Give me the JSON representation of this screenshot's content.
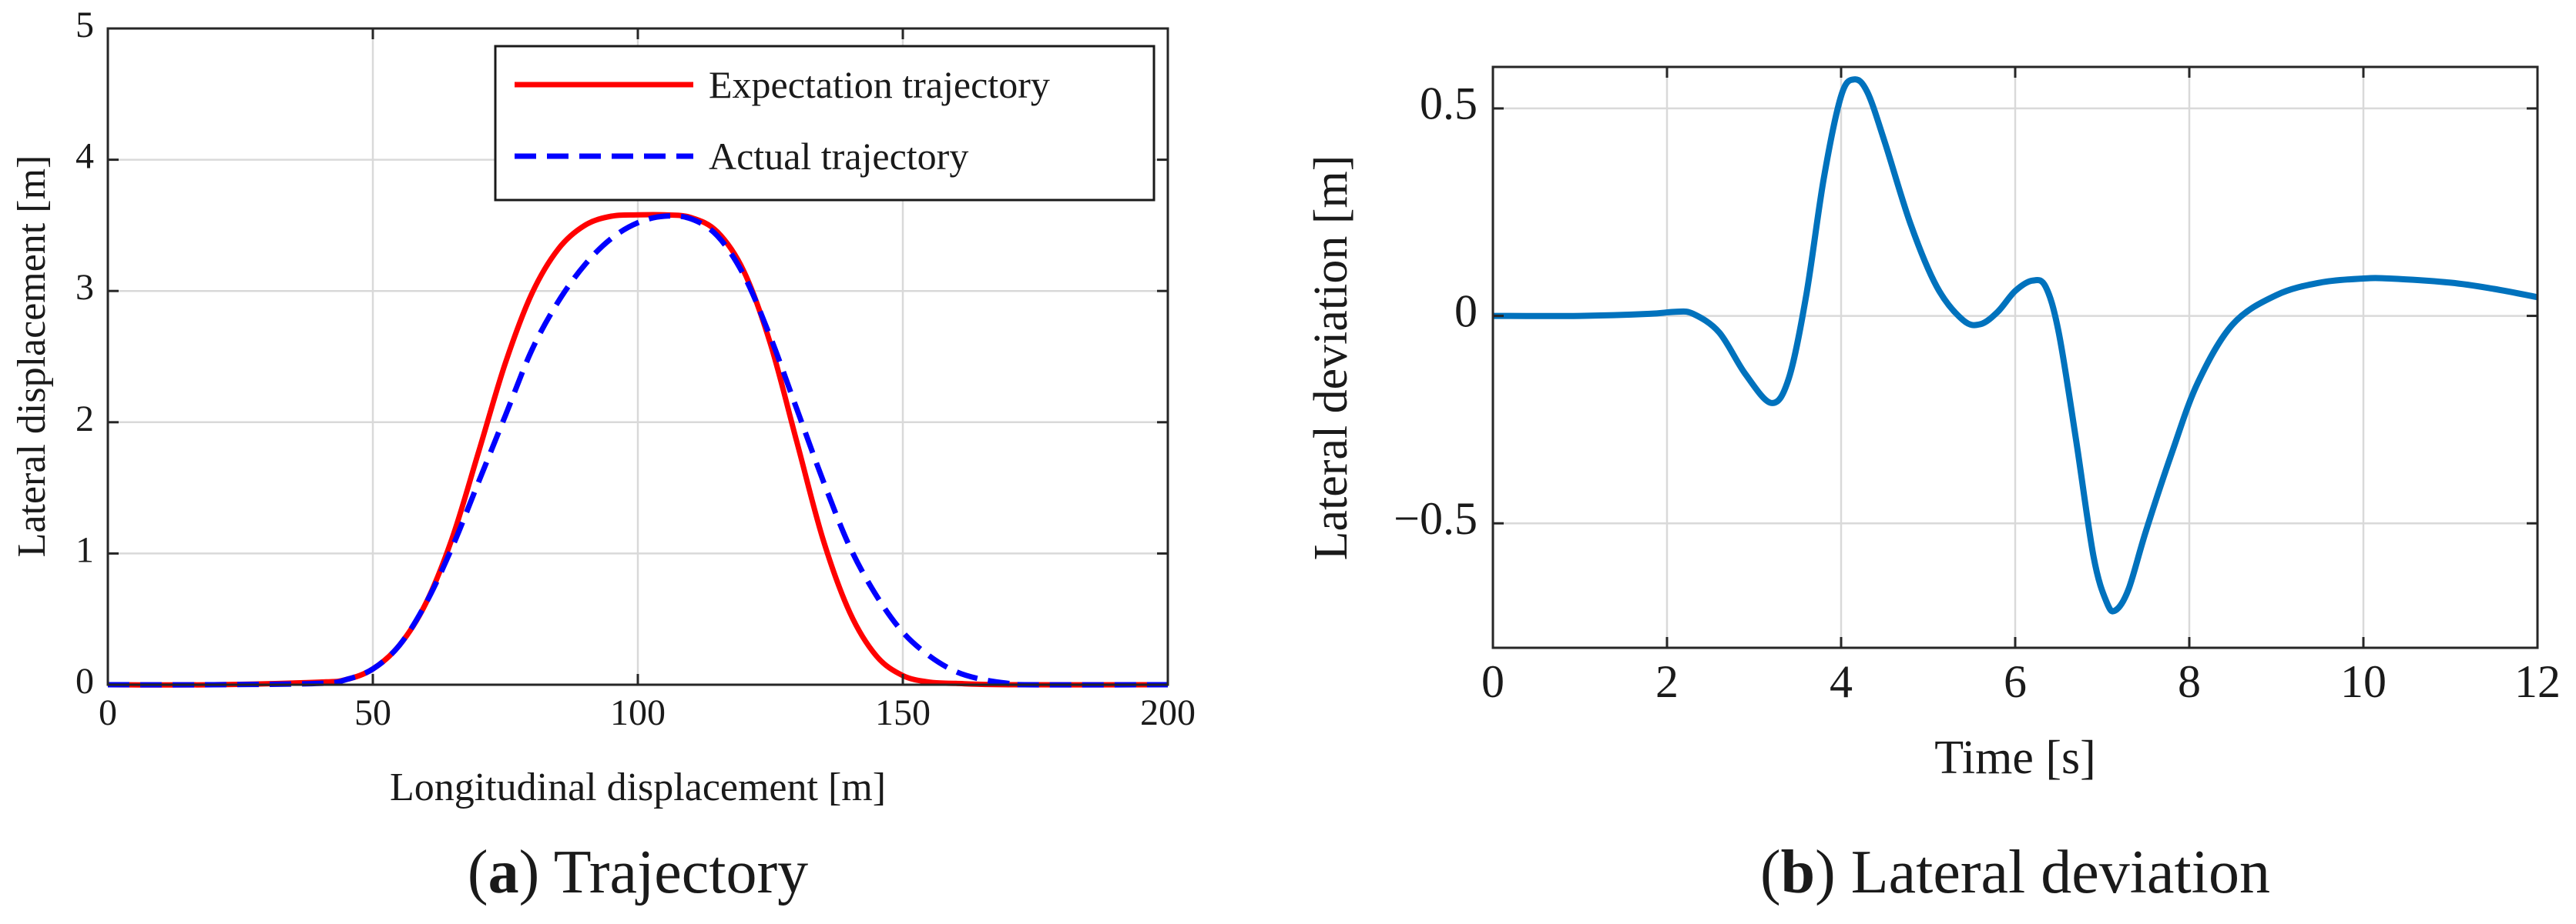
{
  "chart_data": [
    {
      "id": "a",
      "type": "line",
      "title": "",
      "xlabel": "Longitudinal displacement [m]",
      "ylabel": "Lateral displacement [m]",
      "xlim": [
        0,
        200
      ],
      "ylim": [
        0,
        5
      ],
      "xticks": [
        0,
        50,
        100,
        150,
        200
      ],
      "yticks": [
        0,
        1,
        2,
        3,
        4,
        5
      ],
      "grid": true,
      "legend_position": "top-right",
      "caption": {
        "label": "a",
        "text": "Trajectory"
      },
      "series": [
        {
          "name": "Expectation trajectory",
          "color": "#ff0000",
          "style": "solid",
          "x": [
            0,
            20,
            40,
            45,
            50,
            55,
            60,
            65,
            70,
            75,
            80,
            85,
            90,
            95,
            100,
            105,
            110,
            115,
            120,
            125,
            130,
            135,
            140,
            145,
            150,
            155,
            160,
            170,
            200
          ],
          "y": [
            0,
            0,
            0.02,
            0.04,
            0.12,
            0.3,
            0.62,
            1.12,
            1.78,
            2.45,
            2.98,
            3.32,
            3.5,
            3.57,
            3.58,
            3.58,
            3.56,
            3.45,
            3.15,
            2.6,
            1.85,
            1.1,
            0.55,
            0.22,
            0.07,
            0.02,
            0.01,
            0,
            0
          ]
        },
        {
          "name": "Actual trajectory",
          "color": "#0000ff",
          "style": "dashed",
          "x": [
            0,
            20,
            40,
            45,
            50,
            55,
            60,
            65,
            70,
            75,
            80,
            85,
            90,
            95,
            100,
            105,
            110,
            115,
            120,
            125,
            130,
            135,
            140,
            145,
            150,
            155,
            160,
            165,
            170,
            173,
            200
          ],
          "y": [
            0,
            0,
            0.01,
            0.04,
            0.12,
            0.3,
            0.62,
            1.05,
            1.55,
            2.05,
            2.55,
            2.92,
            3.2,
            3.4,
            3.52,
            3.57,
            3.55,
            3.42,
            3.12,
            2.65,
            2.1,
            1.55,
            1.05,
            0.68,
            0.4,
            0.22,
            0.1,
            0.04,
            0.01,
            0,
            0
          ]
        }
      ]
    },
    {
      "id": "b",
      "type": "line",
      "title": "",
      "xlabel": "Time [s]",
      "ylabel": "Lateral deviation [m]",
      "xlim": [
        0,
        12
      ],
      "ylim": [
        -0.8,
        0.6
      ],
      "xticks": [
        0,
        2,
        4,
        6,
        8,
        10,
        12
      ],
      "yticks": [
        0.5,
        0,
        -0.5
      ],
      "ytick_labels": [
        "0.5",
        "0",
        "−0.5"
      ],
      "grid": true,
      "caption": {
        "label": "b",
        "text": "Lateral deviation"
      },
      "series": [
        {
          "name": "Lateral deviation",
          "color": "#0072bd",
          "style": "solid",
          "x": [
            0,
            1,
            1.8,
            2.1,
            2.3,
            2.6,
            2.9,
            3.2,
            3.4,
            3.6,
            3.8,
            4.0,
            4.15,
            4.3,
            4.5,
            4.8,
            5.1,
            5.4,
            5.6,
            5.8,
            6.0,
            6.2,
            6.35,
            6.5,
            6.7,
            6.9,
            7.05,
            7.15,
            7.3,
            7.5,
            7.8,
            8.1,
            8.5,
            9.0,
            9.5,
            10.0,
            10.3,
            11.0,
            11.5,
            12.0
          ],
          "y": [
            0,
            0,
            0.005,
            0.01,
            0.005,
            -0.04,
            -0.14,
            -0.21,
            -0.15,
            0.05,
            0.33,
            0.53,
            0.57,
            0.54,
            0.42,
            0.22,
            0.07,
            -0.01,
            -0.02,
            0.01,
            0.06,
            0.085,
            0.07,
            -0.04,
            -0.3,
            -0.58,
            -0.69,
            -0.71,
            -0.66,
            -0.52,
            -0.33,
            -0.16,
            -0.02,
            0.05,
            0.08,
            0.09,
            0.09,
            0.08,
            0.065,
            0.045
          ]
        }
      ]
    }
  ]
}
